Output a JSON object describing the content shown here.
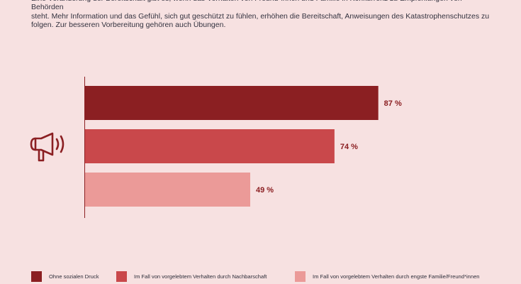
{
  "intro": {
    "line1": "Eine Veränderung der Bereitschaft gibt es, wenn das Verhalten von Freund*innen und Familie in Konkurrenz zu Empfehlungen von Behörden",
    "line2": "steht. Mehr Information und das Gefühl, sich gut geschützt zu fühlen, erhöhen die Bereitschaft, Anweisungen des Katastrophenschutzes zu",
    "line3": "folgen. Zur besseren Vorbereitung gehören auch Übungen."
  },
  "icon": "megaphone-icon",
  "chart_data": {
    "type": "bar",
    "orientation": "horizontal",
    "categories": [
      "Ohne sozialen Druck",
      "Im Fall von vorgelebtem Verhalten durch Nachbarschaft",
      "Im Fall von vorgelebtem Verhalten durch engste Familie/Freund*innen"
    ],
    "values": [
      87,
      74,
      49
    ],
    "value_labels": [
      "87 %",
      "74 %",
      "49 %"
    ],
    "colors": [
      "#8b1f22",
      "#c9484b",
      "#eb9a98"
    ],
    "value_label_color": "#8b1f22",
    "xlim": [
      0,
      100
    ],
    "grid": false,
    "legend_position": "bottom"
  },
  "legend": [
    {
      "label": "Ohne sozialen Druck",
      "color": "#8b1f22"
    },
    {
      "label": "Im Fall von vorgelebtem Verhalten durch Nachbarschaft",
      "color": "#c9484b"
    },
    {
      "label": "Im Fall von vorgelebtem Verhalten durch engste Familie/Freund*innen",
      "color": "#eb9a98"
    }
  ]
}
